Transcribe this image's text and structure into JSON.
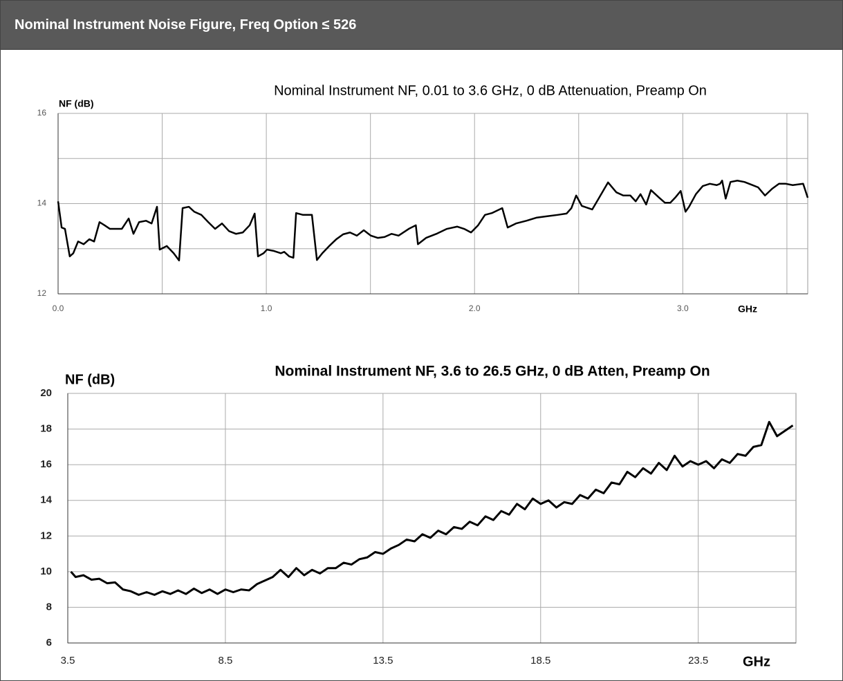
{
  "header": {
    "title": "Nominal Instrument Noise Figure, Freq Option ≤ 526"
  },
  "chart_data": [
    {
      "type": "line",
      "title": "Nominal Instrument NF, 0.01 to 3.6 GHz, 0 dB Attenuation, Preamp On",
      "y_label": "NF (dB)",
      "x_label": "GHz",
      "color": "#000000",
      "grid": true,
      "xlim": [
        0,
        3.6
      ],
      "ylim": [
        12,
        16
      ],
      "xticks": [
        {
          "value": 0,
          "label": "0.0"
        },
        {
          "value": 1,
          "label": "1.0"
        },
        {
          "value": 2,
          "label": "2.0"
        },
        {
          "value": 3,
          "label": "3.0"
        }
      ],
      "xminor": [
        0.5,
        1.5,
        2.5,
        3.5
      ],
      "yticks": [
        12,
        14,
        16
      ],
      "yminor": [
        13,
        15
      ],
      "x": [
        0,
        0.017,
        0.033,
        0.056,
        0.073,
        0.096,
        0.123,
        0.15,
        0.173,
        0.199,
        0.223,
        0.249,
        0.272,
        0.306,
        0.339,
        0.362,
        0.389,
        0.422,
        0.449,
        0.475,
        0.488,
        0.522,
        0.555,
        0.581,
        0.598,
        0.628,
        0.654,
        0.688,
        0.721,
        0.754,
        0.787,
        0.821,
        0.854,
        0.887,
        0.92,
        0.944,
        0.96,
        0.987,
        1.003,
        1.037,
        1.07,
        1.086,
        1.11,
        1.13,
        1.143,
        1.176,
        1.219,
        1.243,
        1.269,
        1.302,
        1.336,
        1.369,
        1.402,
        1.435,
        1.468,
        1.502,
        1.535,
        1.568,
        1.601,
        1.635,
        1.684,
        1.718,
        1.728,
        1.767,
        1.817,
        1.867,
        1.917,
        1.95,
        1.983,
        2.017,
        2.05,
        2.083,
        2.133,
        2.159,
        2.199,
        2.249,
        2.299,
        2.349,
        2.399,
        2.442,
        2.465,
        2.488,
        2.515,
        2.565,
        2.588,
        2.641,
        2.681,
        2.714,
        2.748,
        2.774,
        2.797,
        2.824,
        2.847,
        2.887,
        2.914,
        2.94,
        2.963,
        2.99,
        3.013,
        3.03,
        3.063,
        3.096,
        3.13,
        3.163,
        3.179,
        3.189,
        3.206,
        3.229,
        3.262,
        3.296,
        3.329,
        3.362,
        3.395,
        3.429,
        3.462,
        3.495,
        3.528,
        3.578,
        3.6
      ],
      "values": [
        14.05,
        13.47,
        13.44,
        12.83,
        12.9,
        13.16,
        13.1,
        13.21,
        13.16,
        13.59,
        13.52,
        13.44,
        13.44,
        13.44,
        13.67,
        13.33,
        13.59,
        13.62,
        13.56,
        13.93,
        12.98,
        13.06,
        12.9,
        12.74,
        13.9,
        13.93,
        13.82,
        13.75,
        13.59,
        13.44,
        13.56,
        13.39,
        13.33,
        13.36,
        13.52,
        13.78,
        12.83,
        12.9,
        12.98,
        12.95,
        12.9,
        12.93,
        12.83,
        12.8,
        13.79,
        13.75,
        13.75,
        12.75,
        12.9,
        13.06,
        13.21,
        13.32,
        13.36,
        13.29,
        13.41,
        13.29,
        13.24,
        13.26,
        13.33,
        13.29,
        13.44,
        13.52,
        13.1,
        13.24,
        13.33,
        13.44,
        13.49,
        13.44,
        13.36,
        13.52,
        13.75,
        13.79,
        13.9,
        13.47,
        13.56,
        13.62,
        13.69,
        13.72,
        13.75,
        13.78,
        13.9,
        14.18,
        13.95,
        13.87,
        14.05,
        14.47,
        14.25,
        14.18,
        14.18,
        14.05,
        14.21,
        13.98,
        14.3,
        14.13,
        14.02,
        14.02,
        14.13,
        14.28,
        13.82,
        13.93,
        14.21,
        14.39,
        14.44,
        14.41,
        14.44,
        14.51,
        14.11,
        14.48,
        14.51,
        14.48,
        14.42,
        14.36,
        14.18,
        14.33,
        14.44,
        14.44,
        14.41,
        14.44,
        14.13
      ]
    },
    {
      "type": "line",
      "title": "Nominal Instrument NF, 3.6 to 26.5 GHz, 0 dB Atten, Preamp On",
      "y_label": "NF (dB)",
      "x_label": "GHz",
      "color": "#000000",
      "grid": true,
      "xlim": [
        3.5,
        26.6
      ],
      "ylim": [
        6,
        20
      ],
      "xticks": [
        3.5,
        8.5,
        13.5,
        18.5,
        23.5
      ],
      "yticks": [
        6,
        8,
        10,
        12,
        14,
        16,
        18,
        20
      ],
      "x": [
        3.6,
        3.75,
        4.0,
        4.25,
        4.5,
        4.75,
        5.0,
        5.25,
        5.5,
        5.75,
        6.0,
        6.25,
        6.5,
        6.75,
        7.0,
        7.25,
        7.5,
        7.75,
        8.0,
        8.25,
        8.5,
        8.75,
        9.0,
        9.25,
        9.5,
        9.75,
        10.0,
        10.25,
        10.5,
        10.75,
        11.0,
        11.25,
        11.5,
        11.75,
        12.0,
        12.25,
        12.5,
        12.75,
        13.0,
        13.25,
        13.5,
        13.75,
        14.0,
        14.25,
        14.5,
        14.75,
        15.0,
        15.25,
        15.5,
        15.75,
        16.0,
        16.25,
        16.5,
        16.75,
        17.0,
        17.25,
        17.5,
        17.75,
        18.0,
        18.25,
        18.5,
        18.75,
        19.0,
        19.25,
        19.5,
        19.75,
        20.0,
        20.25,
        20.5,
        20.75,
        21.0,
        21.25,
        21.5,
        21.75,
        22.0,
        22.25,
        22.5,
        22.75,
        23.0,
        23.25,
        23.5,
        23.75,
        24.0,
        24.25,
        24.5,
        24.75,
        25.0,
        25.25,
        25.5,
        25.75,
        26.0,
        26.25,
        26.5
      ],
      "values": [
        10.0,
        9.7,
        9.8,
        9.55,
        9.6,
        9.35,
        9.4,
        9.0,
        8.9,
        8.7,
        8.85,
        8.7,
        8.9,
        8.75,
        8.95,
        8.75,
        9.05,
        8.8,
        9.0,
        8.75,
        9.0,
        8.85,
        9.0,
        8.95,
        9.3,
        9.5,
        9.7,
        10.1,
        9.7,
        10.2,
        9.8,
        10.1,
        9.9,
        10.2,
        10.2,
        10.5,
        10.4,
        10.7,
        10.8,
        11.1,
        11.0,
        11.3,
        11.5,
        11.8,
        11.7,
        12.1,
        11.9,
        12.3,
        12.1,
        12.5,
        12.4,
        12.8,
        12.6,
        13.1,
        12.9,
        13.4,
        13.2,
        13.8,
        13.5,
        14.1,
        13.8,
        14.0,
        13.6,
        13.9,
        13.8,
        14.3,
        14.1,
        14.6,
        14.4,
        15.0,
        14.9,
        15.6,
        15.3,
        15.8,
        15.5,
        16.1,
        15.7,
        16.5,
        15.9,
        16.2,
        16.0,
        16.2,
        15.8,
        16.3,
        16.1,
        16.6,
        16.5,
        17.0,
        17.1,
        18.4,
        17.6,
        17.9,
        18.2
      ]
    }
  ]
}
